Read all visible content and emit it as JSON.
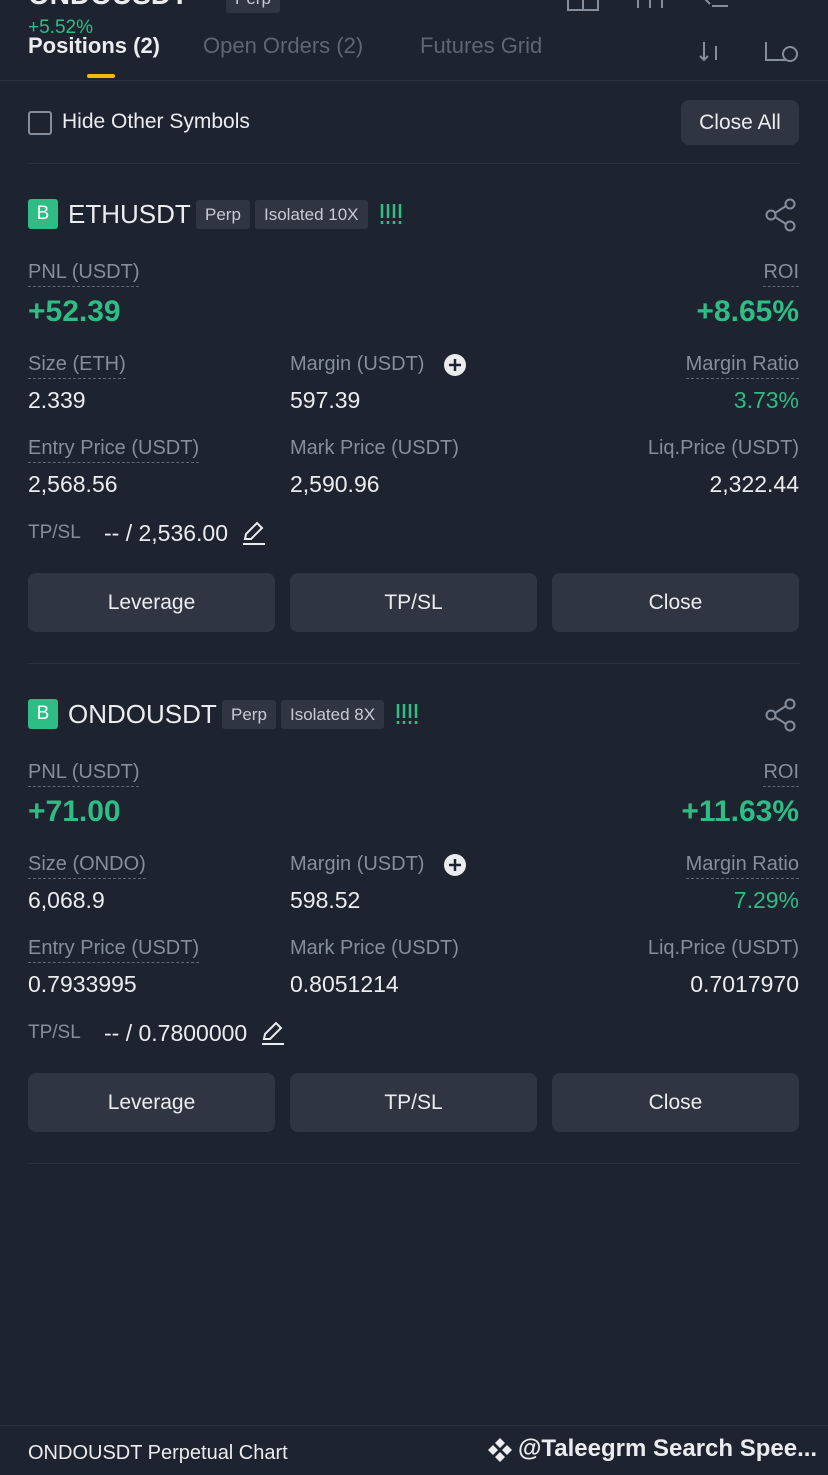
{
  "header": {
    "symbol": "ONDOUSDT",
    "badge": "Perp",
    "change": "+5.52%",
    "tabs": [
      "Positions (2)",
      "Open Orders (2)",
      "Futures Grid"
    ]
  },
  "toolbar": {
    "checkbox_label": "Hide Other Symbols",
    "close_all": "Close All"
  },
  "positions": [
    {
      "side": "B",
      "symbol": "ETHUSDT",
      "type": "Perp",
      "mode": "Isolated 10X",
      "pnl_label": "PNL (USDT)",
      "pnl": "+52.39",
      "roi_label": "ROI",
      "roi": "+8.65%",
      "fields": [
        {
          "label": "Size (ETH)",
          "value": "2.339"
        },
        {
          "label": "Margin (USDT)",
          "value": "597.39"
        },
        {
          "label": "Margin Ratio",
          "value": "3.73%"
        },
        {
          "label": "Entry Price (USDT)",
          "value": "2,568.56"
        },
        {
          "label": "Mark Price (USDT)",
          "value": "2,590.96"
        },
        {
          "label": "Liq.Price (USDT)",
          "value": "2,322.44"
        }
      ],
      "tpsl_label": "TP/SL",
      "tpsl": "-- / 2,536.00",
      "buttons": [
        "Leverage",
        "TP/SL",
        "Close"
      ]
    },
    {
      "side": "B",
      "symbol": "ONDOUSDT",
      "type": "Perp",
      "mode": "Isolated 8X",
      "pnl_label": "PNL (USDT)",
      "pnl": "+71.00",
      "roi_label": "ROI",
      "roi": "+11.63%",
      "fields": [
        {
          "label": "Size (ONDO)",
          "value": "6,068.9"
        },
        {
          "label": "Margin (USDT)",
          "value": "598.52"
        },
        {
          "label": "Margin Ratio",
          "value": "7.29%"
        },
        {
          "label": "Entry Price (USDT)",
          "value": "0.7933995"
        },
        {
          "label": "Mark Price (USDT)",
          "value": "0.8051214"
        },
        {
          "label": "Liq.Price (USDT)",
          "value": "0.7017970"
        }
      ],
      "tpsl_label": "TP/SL",
      "tpsl": "-- / 0.7800000",
      "buttons": [
        "Leverage",
        "TP/SL",
        "Close"
      ]
    }
  ],
  "footer": {
    "left": "ONDOUSDT Perpetual  Chart",
    "right": "@Taleegrm Search Spee..."
  }
}
